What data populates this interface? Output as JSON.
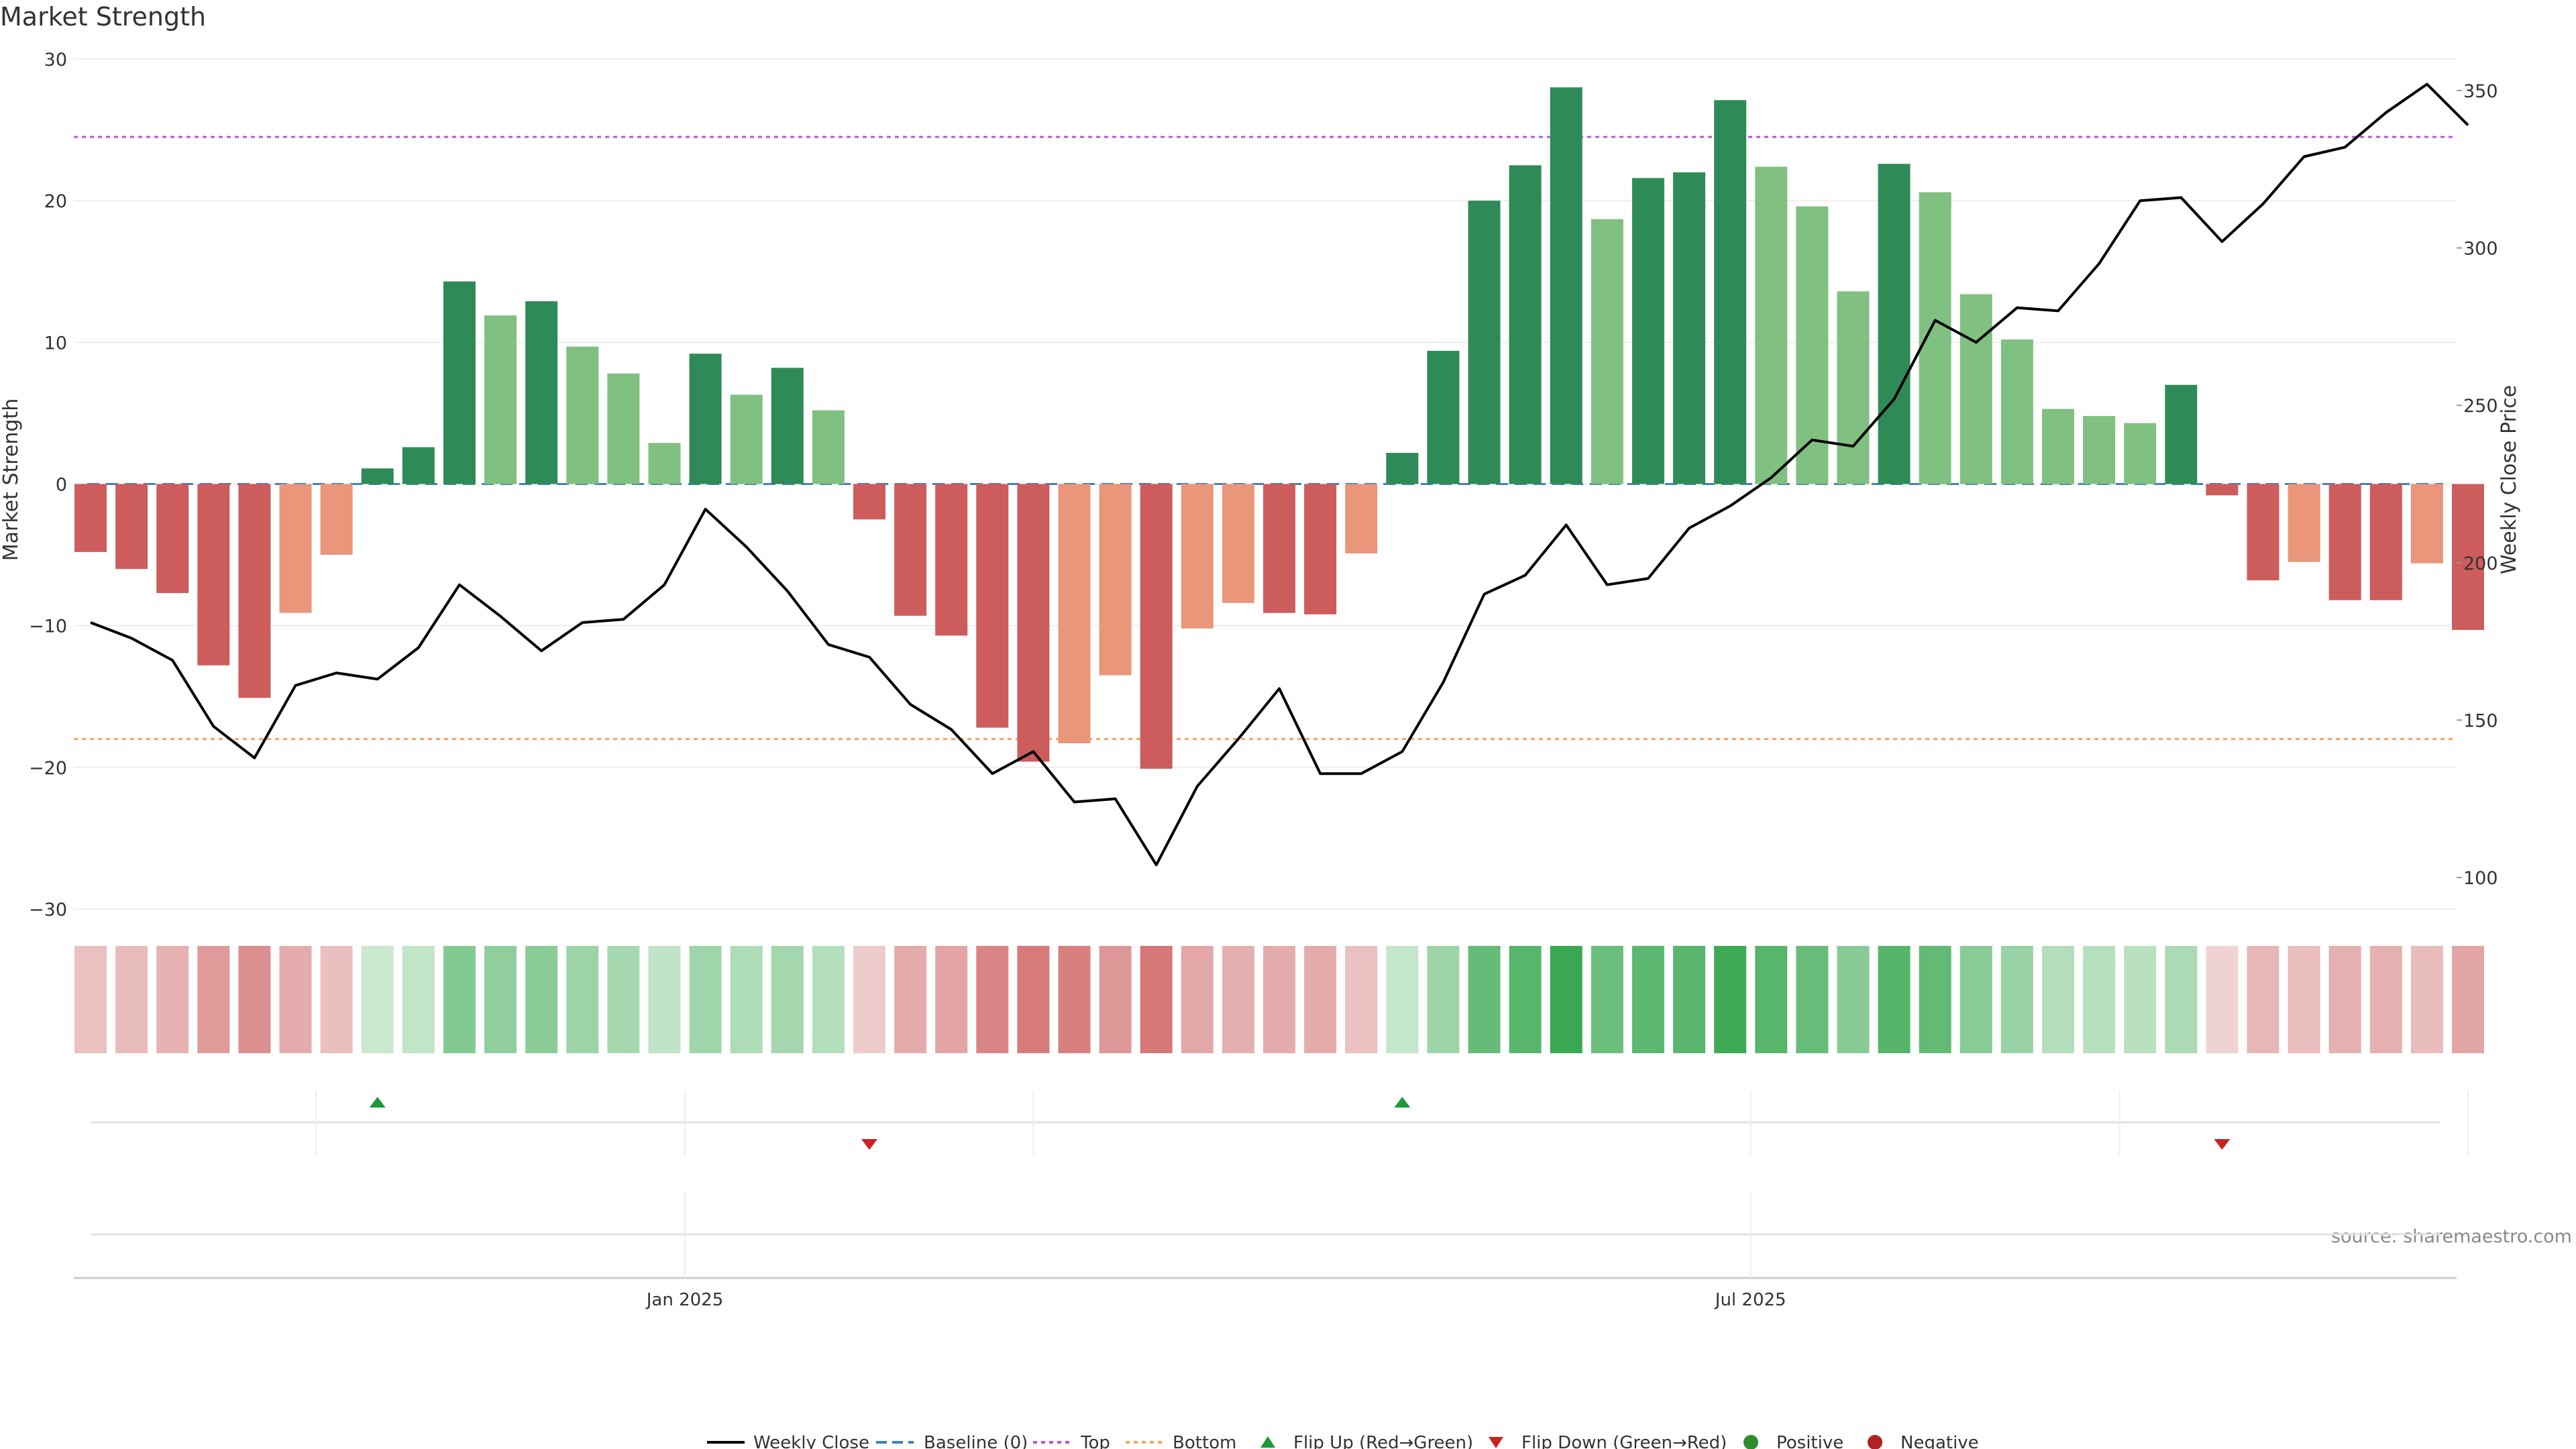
{
  "chart_data": {
    "type": "bar+line",
    "title": "Market Strength",
    "source": "source: sharemaestro.com",
    "left_axis": {
      "label": "Market Strength",
      "range": [
        -30,
        30
      ],
      "ticks": [
        "30",
        "20",
        "10",
        "0",
        "−10",
        "−20",
        "−30"
      ],
      "tick_values": [
        30,
        20,
        10,
        0,
        -10,
        -20,
        -30
      ]
    },
    "right_axis": {
      "label": "Weekly Close Price",
      "range": [
        90,
        360
      ],
      "ticks": [
        "350",
        "300",
        "250",
        "200",
        "150",
        "100"
      ],
      "tick_values": [
        350,
        300,
        250,
        200,
        150,
        100
      ]
    },
    "x_axis": {
      "ticks": [
        "Jan 2025",
        "Jul 2025"
      ],
      "tick_weeks": [
        14.5,
        40.5
      ]
    },
    "top_line": 24.5,
    "bottom_line": -18,
    "baseline": 0,
    "strength": [
      -4.8,
      -6.0,
      -7.7,
      -12.8,
      -15.1,
      -9.1,
      -5.0,
      1.1,
      2.6,
      14.3,
      11.9,
      12.9,
      9.7,
      7.8,
      2.9,
      9.2,
      6.3,
      8.2,
      5.2,
      -2.5,
      -9.3,
      -10.7,
      -17.2,
      -19.6,
      -18.3,
      -13.5,
      -20.1,
      -10.2,
      -8.4,
      -9.1,
      -9.2,
      -4.9,
      2.2,
      9.4,
      20.0,
      22.5,
      28.0,
      18.7,
      21.6,
      22.0,
      27.1,
      22.4,
      19.6,
      13.6,
      22.6,
      20.6,
      13.4,
      10.2,
      5.3,
      4.8,
      4.3,
      7.0,
      -0.8,
      -6.8,
      -5.5,
      -8.2,
      -8.2,
      -5.6,
      -10.3
    ],
    "weekly_close": [
      181,
      176,
      169,
      148,
      138,
      161,
      165,
      163,
      173,
      193,
      183,
      172,
      181,
      182,
      193,
      217,
      205,
      191,
      174,
      170,
      155,
      147,
      133,
      140,
      124,
      125,
      104,
      129,
      144,
      160,
      133,
      133,
      140,
      162,
      190,
      196,
      212,
      193,
      195,
      211,
      218,
      227,
      239,
      237,
      252,
      277,
      270,
      281,
      280,
      295,
      315,
      316,
      302,
      314,
      329,
      332,
      343,
      352,
      339
    ],
    "bar_color_category": [
      "rd",
      "rd",
      "rd",
      "rd",
      "rd",
      "rl",
      "rl",
      "gd",
      "gd",
      "gd",
      "gl",
      "gd",
      "gl",
      "gl",
      "gl",
      "gd",
      "gl",
      "gd",
      "gl",
      "rd",
      "rd",
      "rd",
      "rd",
      "rd",
      "rl",
      "rl",
      "rd",
      "rl",
      "rl",
      "rd",
      "rd",
      "rl",
      "gd",
      "gd",
      "gd",
      "gd",
      "gd",
      "gl",
      "gd",
      "gd",
      "gd",
      "gl",
      "gl",
      "gl",
      "gd",
      "gl",
      "gl",
      "gl",
      "gl",
      "gl",
      "gl",
      "gd",
      "rd",
      "rd",
      "rl",
      "rd",
      "rd",
      "rl",
      "rd"
    ],
    "flip_up_weeks": [
      7,
      32
    ],
    "flip_down_weeks": [
      19,
      52
    ],
    "event_dividers": [
      5.5,
      14.5,
      23,
      40.5,
      49.5,
      58
    ],
    "legend": [
      "Weekly Close",
      "Baseline (0)",
      "Top",
      "Bottom",
      "Flip Up (Red→Green)",
      "Flip Down (Green→Red)",
      "Positive",
      "Negative"
    ],
    "colors": {
      "gd": "#2e8b57",
      "gl": "#80c080",
      "rd": "#cd5c5c",
      "rl": "#e9967a",
      "line": "#000000",
      "baseline": "#4682b4",
      "top": "#ba55d3",
      "bottom": "#f4a460",
      "flip_up": "#1a9a3a",
      "flip_down": "#cc2222",
      "positive": "#2e8b2e",
      "negative": "#b22222",
      "grid": "#eeeeee",
      "text": "#333333"
    }
  }
}
